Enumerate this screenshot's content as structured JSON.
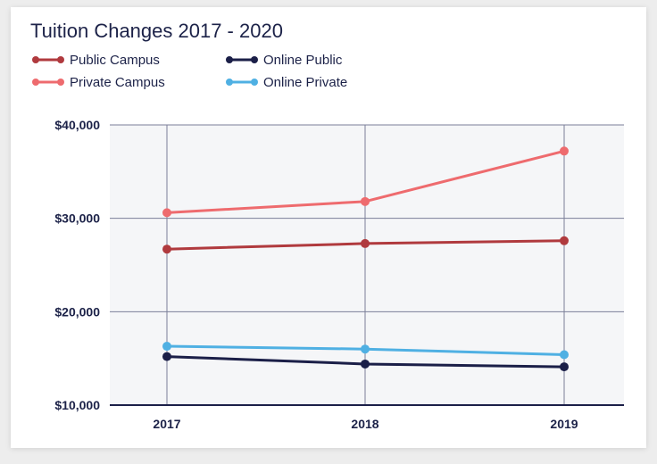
{
  "chart_data": {
    "type": "line",
    "title": "Tuition Changes 2017 - 2020",
    "xlabel": "",
    "ylabel": "",
    "categories": [
      "2017",
      "2018",
      "2019"
    ],
    "ylim": [
      10000,
      40000
    ],
    "yticks": [
      10000,
      20000,
      30000,
      40000
    ],
    "ytick_labels": [
      "$10,000",
      "$20,000",
      "$30,000",
      "$40,000"
    ],
    "legend_position": "top-left",
    "grid": true,
    "series": [
      {
        "name": "Public Campus",
        "color": "#b03a3e",
        "values": [
          26700,
          27300,
          27600
        ]
      },
      {
        "name": "Online Public",
        "color": "#1b1f48",
        "values": [
          15200,
          14400,
          14100
        ]
      },
      {
        "name": "Private Campus",
        "color": "#ee6b6e",
        "values": [
          30600,
          31800,
          37200
        ]
      },
      {
        "name": "Online Private",
        "color": "#4fb0e3",
        "values": [
          16300,
          16000,
          15400
        ]
      }
    ]
  }
}
